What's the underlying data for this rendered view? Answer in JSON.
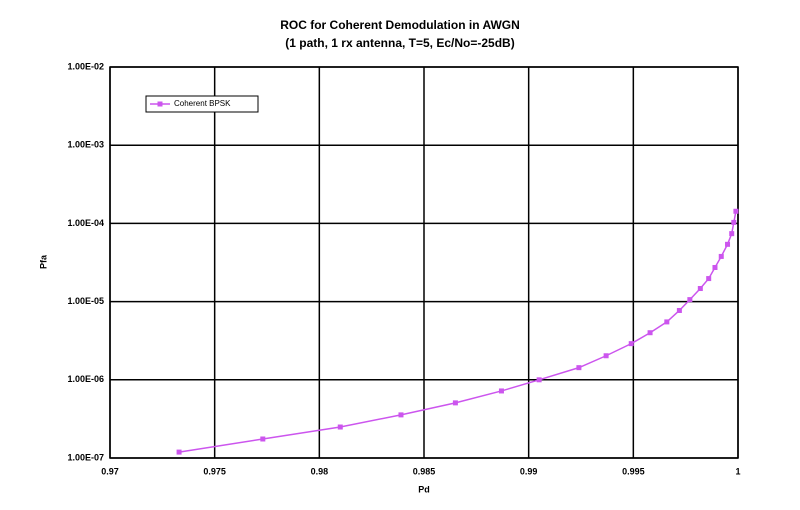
{
  "chart_data": {
    "type": "line",
    "title": "ROC for Coherent Demodulation in AWGN",
    "subtitle": "(1 path, 1 rx antenna, T=5, Ec/No=-25dB)",
    "x_label": "Pd",
    "y_label": "Pfa",
    "x": [
      0.9733,
      0.9773,
      0.981,
      0.9839,
      0.9865,
      0.9887,
      0.9905,
      0.9924,
      0.9937,
      0.9949,
      0.9958,
      0.9966,
      0.9972,
      0.9977,
      0.9982,
      0.9986,
      0.9989,
      0.9992,
      0.9995,
      0.9997,
      0.9998,
      0.9999
    ],
    "series": [
      {
        "name": "Coherent BPSK",
        "color": "#cc55ee",
        "values": [
          1.19e-07,
          1.75e-07,
          2.49e-07,
          3.56e-07,
          5.07e-07,
          7.2e-07,
          1e-06,
          1.43e-06,
          2.03e-06,
          2.9e-06,
          4e-06,
          5.5e-06,
          7.7e-06,
          1.06e-05,
          1.47e-05,
          1.97e-05,
          2.73e-05,
          3.78e-05,
          5.4e-05,
          7.4e-05,
          0.000103,
          0.000143
        ]
      }
    ],
    "xlim": [
      0.97,
      1
    ],
    "xticks": [
      0.97,
      0.975,
      0.98,
      0.985,
      0.99,
      0.995,
      1
    ],
    "ylim": [
      1e-07,
      0.01
    ],
    "log_y": true,
    "yticks": [
      {
        "value": 0.01,
        "label": "1.00E-02"
      },
      {
        "value": 0.001,
        "label": "1.00E-03"
      },
      {
        "value": 0.0001,
        "label": "1.00E-04"
      },
      {
        "value": 1e-05,
        "label": "1.00E-05"
      },
      {
        "value": 1e-06,
        "label": "1.00E-06"
      },
      {
        "value": 1e-07,
        "label": "1.00E-07"
      }
    ],
    "grid": true,
    "legend": "upper left"
  }
}
